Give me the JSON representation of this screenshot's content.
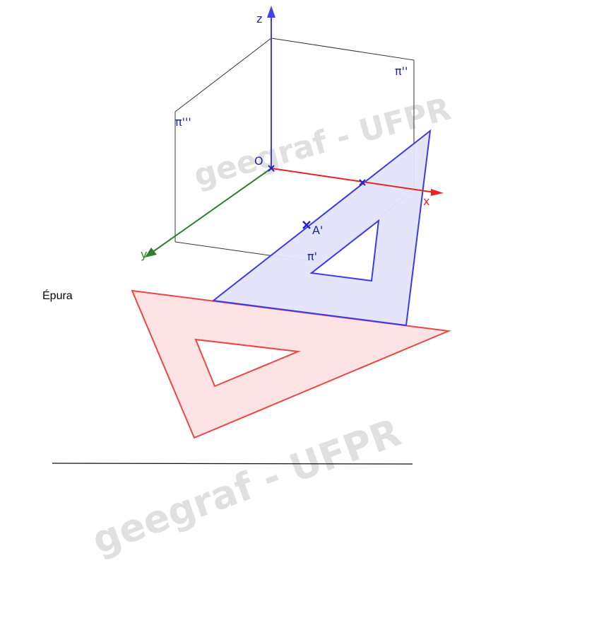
{
  "title": "Épura",
  "watermark": "geegraf - UFPR",
  "axes": {
    "x": "x",
    "y": "y",
    "z": "z",
    "origin": "O"
  },
  "planes": {
    "horizontal": "π'",
    "frontal": "π''",
    "profile": "π'''"
  },
  "points": {
    "a_prime": "A'"
  },
  "colors": {
    "x_axis": "#e32626",
    "y_axis": "#2e7d2e",
    "z_axis": "#4040ee",
    "set_square_blue_fill": "#e3e4fa",
    "set_square_blue_stroke": "#3a3ae8",
    "set_square_red_fill": "#fde3e3",
    "set_square_red_stroke": "#ee4444",
    "plane_edges": "#333333",
    "watermark": "#d9d9d9"
  }
}
